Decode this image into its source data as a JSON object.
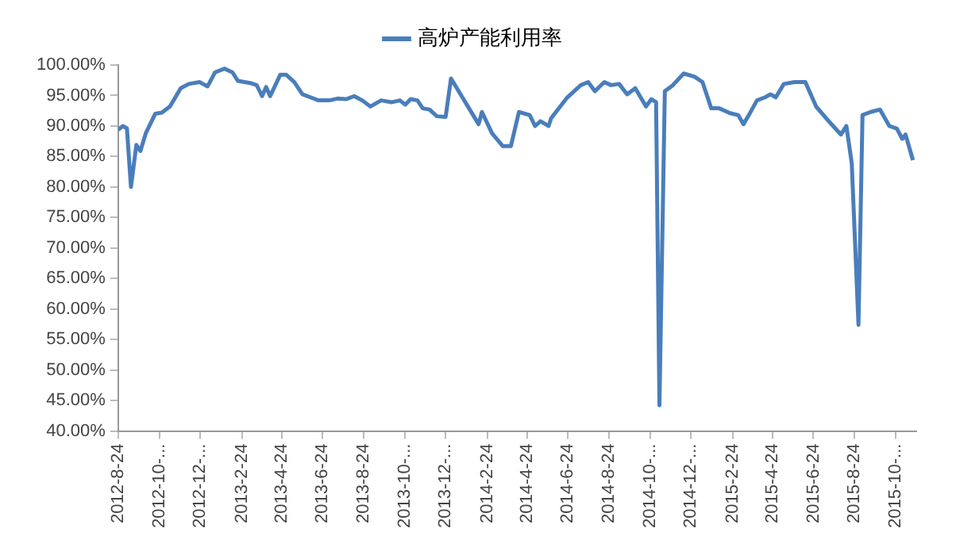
{
  "chart_data": {
    "type": "line",
    "legend": "top",
    "grid": false,
    "marker": "none",
    "line_style": "solid",
    "xlim": [
      "2012-08-24",
      "2015-11-24"
    ],
    "xticks": [
      {
        "value": "2012-08-24",
        "label": "2012-8-24"
      },
      {
        "value": "2012-10-24",
        "label": "2012-10-..."
      },
      {
        "value": "2012-12-24",
        "label": "2012-12-..."
      },
      {
        "value": "2013-02-24",
        "label": "2013-2-24"
      },
      {
        "value": "2013-04-24",
        "label": "2013-4-24"
      },
      {
        "value": "2013-06-24",
        "label": "2013-6-24"
      },
      {
        "value": "2013-08-24",
        "label": "2013-8-24"
      },
      {
        "value": "2013-10-24",
        "label": "2013-10-..."
      },
      {
        "value": "2013-12-24",
        "label": "2013-12-..."
      },
      {
        "value": "2014-02-24",
        "label": "2014-2-24"
      },
      {
        "value": "2014-04-24",
        "label": "2014-4-24"
      },
      {
        "value": "2014-06-24",
        "label": "2014-6-24"
      },
      {
        "value": "2014-08-24",
        "label": "2014-8-24"
      },
      {
        "value": "2014-10-24",
        "label": "2014-10-..."
      },
      {
        "value": "2014-12-24",
        "label": "2014-12-..."
      },
      {
        "value": "2015-02-24",
        "label": "2015-2-24"
      },
      {
        "value": "2015-04-24",
        "label": "2015-4-24"
      },
      {
        "value": "2015-06-24",
        "label": "2015-6-24"
      },
      {
        "value": "2015-08-24",
        "label": "2015-8-24"
      },
      {
        "value": "2015-10-24",
        "label": "2015-10-..."
      }
    ],
    "ylim": [
      40,
      100
    ],
    "yticks": [
      {
        "value": 40,
        "label": "40.00%"
      },
      {
        "value": 45,
        "label": "45.00%"
      },
      {
        "value": 50,
        "label": "50.00%"
      },
      {
        "value": 55,
        "label": "55.00%"
      },
      {
        "value": 60,
        "label": "60.00%"
      },
      {
        "value": 65,
        "label": "65.00%"
      },
      {
        "value": 70,
        "label": "70.00%"
      },
      {
        "value": 75,
        "label": "75.00%"
      },
      {
        "value": 80,
        "label": "80.00%"
      },
      {
        "value": 85,
        "label": "85.00%"
      },
      {
        "value": 90,
        "label": "90.00%"
      },
      {
        "value": 95,
        "label": "95.00%"
      },
      {
        "value": 100,
        "label": "100.00%"
      }
    ],
    "x": [
      "2012-08-24",
      "2012-08-31",
      "2012-09-06",
      "2012-09-12",
      "2012-09-20",
      "2012-09-26",
      "2012-10-04",
      "2012-10-18",
      "2012-10-28",
      "2012-11-09",
      "2012-11-25",
      "2012-12-07",
      "2012-12-23",
      "2013-01-04",
      "2013-01-15",
      "2013-01-29",
      "2013-02-10",
      "2013-02-18",
      "2013-03-10",
      "2013-03-18",
      "2013-03-26",
      "2013-04-01",
      "2013-04-07",
      "2013-04-22",
      "2013-05-01",
      "2013-05-13",
      "2013-05-25",
      "2013-06-06",
      "2013-06-18",
      "2013-07-04",
      "2013-07-16",
      "2013-07-29",
      "2013-08-10",
      "2013-08-22",
      "2013-09-03",
      "2013-09-19",
      "2013-10-05",
      "2013-10-17",
      "2013-10-25",
      "2013-11-02",
      "2013-11-12",
      "2013-11-20",
      "2013-11-30",
      "2013-12-11",
      "2013-12-24",
      "2014-01-01",
      "2014-02-11",
      "2014-02-16",
      "2014-03-03",
      "2014-03-19",
      "2014-03-31",
      "2014-04-12",
      "2014-04-28",
      "2014-05-06",
      "2014-05-14",
      "2014-05-26",
      "2014-05-30",
      "2014-06-23",
      "2014-07-13",
      "2014-07-24",
      "2014-08-03",
      "2014-08-17",
      "2014-08-27",
      "2014-09-08",
      "2014-09-20",
      "2014-10-02",
      "2014-10-18",
      "2014-10-26",
      "2014-11-02",
      "2014-11-07",
      "2014-11-15",
      "2014-11-27",
      "2014-12-13",
      "2014-12-29",
      "2015-01-10",
      "2015-01-23",
      "2015-02-04",
      "2015-02-20",
      "2015-03-04",
      "2015-03-12",
      "2015-03-20",
      "2015-04-01",
      "2015-04-13",
      "2015-04-21",
      "2015-04-29",
      "2015-05-11",
      "2015-05-27",
      "2015-06-12",
      "2015-06-28",
      "2015-07-15",
      "2015-08-04",
      "2015-08-12",
      "2015-08-20",
      "2015-08-30",
      "2015-09-05",
      "2015-09-17",
      "2015-10-01",
      "2015-10-15",
      "2015-10-26",
      "2015-11-03",
      "2015-11-08",
      "2015-11-19"
    ],
    "series": [
      {
        "name": "高炉产能利用率",
        "color": "#4a7ebb",
        "values": [
          89.4,
          90.0,
          89.6,
          80.0,
          86.9,
          85.9,
          88.8,
          92.0,
          92.2,
          93.2,
          96.2,
          96.9,
          97.2,
          96.5,
          98.8,
          99.4,
          98.8,
          97.4,
          97.0,
          96.7,
          94.9,
          96.4,
          94.9,
          98.4,
          98.4,
          97.2,
          95.2,
          94.7,
          94.2,
          94.2,
          94.5,
          94.4,
          94.9,
          94.2,
          93.2,
          94.2,
          93.9,
          94.2,
          93.5,
          94.4,
          94.2,
          92.9,
          92.7,
          91.6,
          91.5,
          97.8,
          90.3,
          92.3,
          88.8,
          86.7,
          86.7,
          92.3,
          91.8,
          90.0,
          90.8,
          90.0,
          91.3,
          94.7,
          96.7,
          97.2,
          95.7,
          97.2,
          96.7,
          96.9,
          95.2,
          96.2,
          93.2,
          94.4,
          93.9,
          44.2,
          95.7,
          96.7,
          98.6,
          98.1,
          97.2,
          92.9,
          92.9,
          92.1,
          91.8,
          90.3,
          91.8,
          94.2,
          94.7,
          95.2,
          94.7,
          96.9,
          97.2,
          97.2,
          93.2,
          91.0,
          88.6,
          90.0,
          83.9,
          57.4,
          91.8,
          92.3,
          92.7,
          90.0,
          89.6,
          87.9,
          88.6,
          84.4
        ]
      }
    ]
  }
}
